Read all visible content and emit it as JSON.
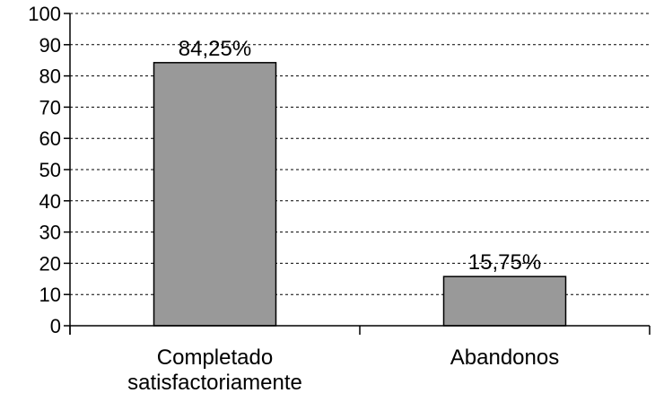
{
  "chart_data": {
    "type": "bar",
    "title": "",
    "xlabel": "",
    "ylabel": "",
    "ylim": [
      0,
      100
    ],
    "yticks": [
      0,
      10,
      20,
      30,
      40,
      50,
      60,
      70,
      80,
      90,
      100
    ],
    "grid": true,
    "categories": [
      [
        "Completado",
        "satisfactoriamente"
      ],
      [
        "Abandonos"
      ]
    ],
    "values": [
      84.25,
      15.75
    ],
    "value_labels": [
      "84,25%",
      "15,75%"
    ],
    "colors": {
      "bar": "#999999",
      "bar_stroke": "#000000",
      "grid": "#000000"
    }
  }
}
